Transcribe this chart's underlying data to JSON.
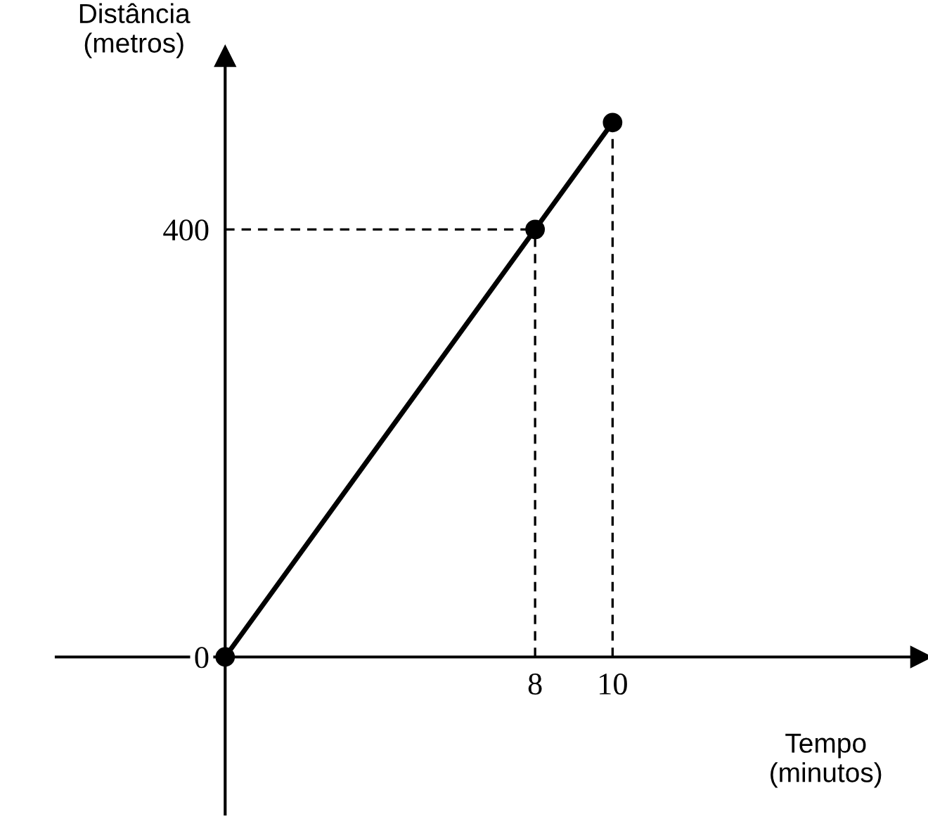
{
  "chart_data": {
    "type": "line",
    "xlabel": "Tempo\n(minutos)",
    "ylabel": "Distância\n(metros)",
    "x": [
      0,
      8,
      10
    ],
    "series": [
      {
        "color": "#000000",
        "values": [
          0,
          400,
          500
        ]
      }
    ],
    "marker": "circle",
    "line_style": "solid",
    "xlim": [
      -4.36,
      17.96
    ],
    "ylim": [
      -147,
      562
    ],
    "xticks": [
      {
        "value": 0,
        "label": null
      },
      8,
      10
    ],
    "yticks": [
      0,
      400
    ],
    "ref_lines": [
      {
        "axis": "x",
        "value": 8,
        "line_style": "dashed",
        "color": "#000000"
      },
      {
        "axis": "x",
        "value": 10,
        "line_style": "dashed",
        "color": "#000000"
      },
      {
        "axis": "y",
        "value": 400,
        "line_style": "dashed",
        "color": "#000000"
      }
    ],
    "grid": false,
    "legend": false
  }
}
